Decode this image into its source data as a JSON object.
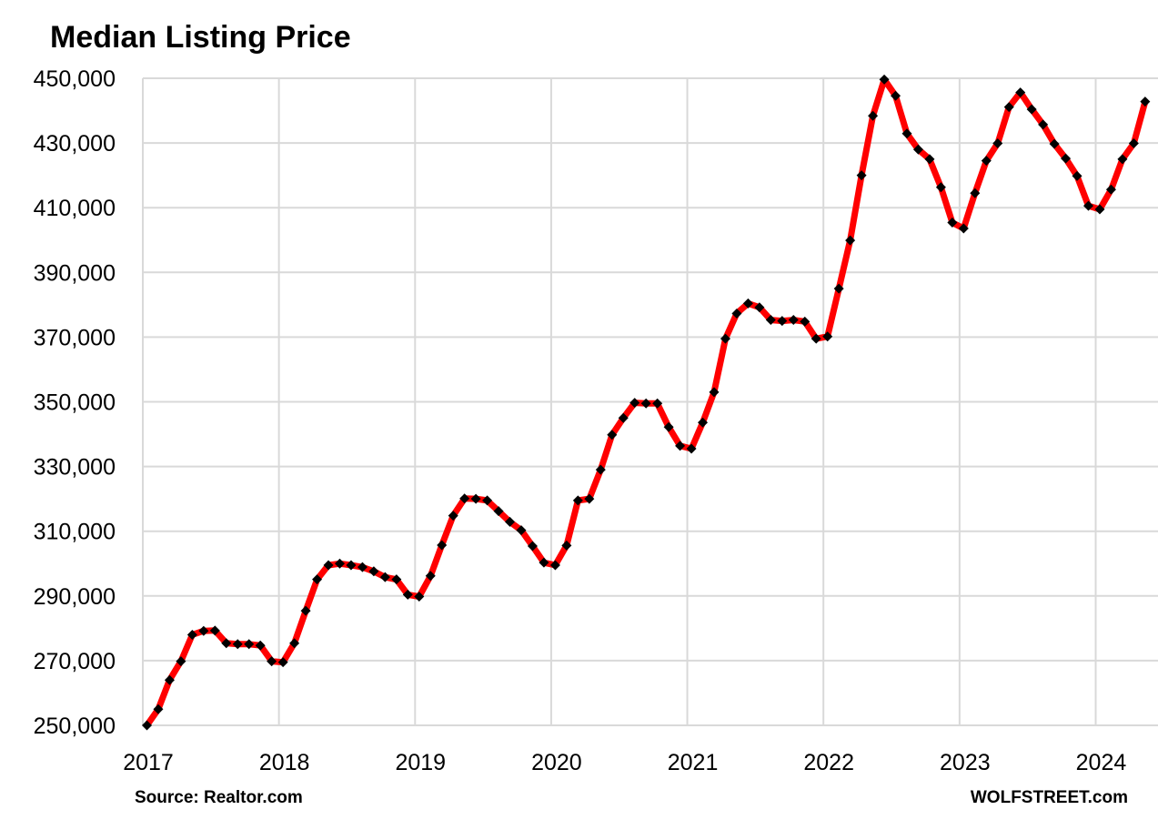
{
  "title": "Median Listing Price",
  "footer": {
    "source": "Source: Realtor.com",
    "brand": "WOLFSTREET.com"
  },
  "colors": {
    "line": "#FF0000",
    "marker": "#000000",
    "grid": "#D9D9D9",
    "text": "#000000",
    "background": "#FFFFFF"
  },
  "chart_data": {
    "type": "line",
    "title": "Median Listing Price",
    "xlabel": "",
    "ylabel": "",
    "frequency": "monthly",
    "x_start": "2017-01",
    "x_end": "2024-05",
    "x_year_labels": [
      "2017",
      "2018",
      "2019",
      "2020",
      "2021",
      "2022",
      "2023",
      "2024"
    ],
    "y_ticks": [
      250000,
      270000,
      290000,
      310000,
      330000,
      350000,
      370000,
      390000,
      410000,
      430000,
      450000
    ],
    "ylim": [
      250000,
      450000
    ],
    "grid": true,
    "legend": "none",
    "marker": "diamond",
    "series": [
      {
        "name": "Median listing price, USD",
        "values": [
          250000,
          255000,
          264000,
          269800,
          278000,
          279200,
          279300,
          275400,
          275100,
          275100,
          274700,
          269800,
          269500,
          275400,
          285400,
          295100,
          299500,
          300000,
          299500,
          298900,
          297600,
          295800,
          295100,
          290400,
          289800,
          296200,
          305700,
          314800,
          320100,
          320000,
          319500,
          316200,
          312900,
          310300,
          305400,
          300300,
          299500,
          305600,
          319500,
          320000,
          329000,
          339800,
          345000,
          349700,
          349500,
          349500,
          342200,
          336400,
          335500,
          343600,
          353000,
          369500,
          377300,
          380400,
          379200,
          375300,
          375000,
          375300,
          374800,
          369500,
          370200,
          385000,
          399900,
          420000,
          438400,
          449600,
          444600,
          432900,
          428000,
          425000,
          416300,
          405400,
          403600,
          414500,
          424500,
          429900,
          441100,
          445600,
          440400,
          435700,
          429700,
          425200,
          419800,
          410600,
          409500,
          415600,
          425000,
          429900,
          442800
        ]
      }
    ]
  }
}
